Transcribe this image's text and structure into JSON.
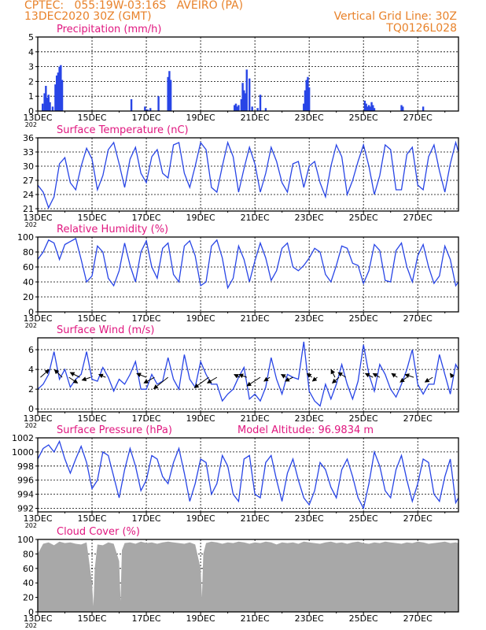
{
  "header": {
    "line1_left": "CPTEC:   055:19W-03:16S   AVEIRO (PA)",
    "line2_left": "13DEC2020 30Z (GMT)",
    "line1_right": "Vertical Grid Line: 30Z",
    "line2_right": "TQ0126L028",
    "color": "#e8822a"
  },
  "x_axis": {
    "tick_labels": [
      "13DEC",
      "15DEC",
      "17DEC",
      "19DEC",
      "21DEC",
      "23DEC",
      "25DEC",
      "27DEC"
    ],
    "tick_days": [
      0,
      2,
      4,
      6,
      8,
      10,
      12,
      14
    ],
    "sub_label": "202",
    "day_range": [
      0,
      15.5
    ]
  },
  "colors": {
    "title": "#e0177f",
    "line": "#2845e6",
    "bar": "#2845e6",
    "cloud": "#a8a8a8",
    "wind_arrow": "#000000"
  },
  "chart_data": [
    {
      "id": "precip",
      "type": "bar",
      "title": "Precipitation  (mm/h)",
      "ylim": [
        0,
        5
      ],
      "yticks": [
        0,
        1,
        2,
        3,
        4,
        5
      ],
      "x_unit": "days since 13DEC",
      "x": [
        0.18,
        0.25,
        0.3,
        0.35,
        0.4,
        0.45,
        0.55,
        0.65,
        0.7,
        0.75,
        0.8,
        0.85,
        0.9,
        3.45,
        3.95,
        4.05,
        4.15,
        4.45,
        4.8,
        4.85,
        4.9,
        7.25,
        7.3,
        7.35,
        7.4,
        7.5,
        7.55,
        7.6,
        7.65,
        7.7,
        7.8,
        7.9,
        8.1,
        8.2,
        8.4,
        9.8,
        9.85,
        9.9,
        9.95,
        10.0,
        12.05,
        12.1,
        12.15,
        12.2,
        12.25,
        12.3,
        12.35,
        12.4,
        13.4,
        13.45,
        14.2
      ],
      "values": [
        0.5,
        1.2,
        1.7,
        0.9,
        1.1,
        0.6,
        0.3,
        1.8,
        2.4,
        2.6,
        3.0,
        3.1,
        2.1,
        0.8,
        0.3,
        0.1,
        0.2,
        1.0,
        2.3,
        2.7,
        2.1,
        0.4,
        0.5,
        0.3,
        0.4,
        0.8,
        1.9,
        1.4,
        1.2,
        2.8,
        2.2,
        0.3,
        0.2,
        1.1,
        0.2,
        0.5,
        1.4,
        2.1,
        2.3,
        1.6,
        0.7,
        0.5,
        0.3,
        0.4,
        0.3,
        0.6,
        0.4,
        0.2,
        0.4,
        0.3,
        0.3
      ]
    },
    {
      "id": "temp",
      "type": "line",
      "title": "Surface Temperature (nC)",
      "ylim": [
        20.5,
        36
      ],
      "yticks": [
        21,
        24,
        27,
        30,
        33,
        36
      ],
      "x_unit": "days since 13DEC",
      "x": [
        0,
        0.2,
        0.4,
        0.6,
        0.8,
        1.0,
        1.2,
        1.4,
        1.6,
        1.8,
        2.0,
        2.2,
        2.4,
        2.6,
        2.8,
        3.0,
        3.2,
        3.4,
        3.6,
        3.8,
        4.0,
        4.2,
        4.4,
        4.6,
        4.8,
        5.0,
        5.2,
        5.4,
        5.6,
        5.8,
        6.0,
        6.2,
        6.4,
        6.6,
        6.8,
        7.0,
        7.2,
        7.4,
        7.6,
        7.8,
        8.0,
        8.2,
        8.4,
        8.6,
        8.8,
        9.0,
        9.2,
        9.4,
        9.6,
        9.8,
        10.0,
        10.2,
        10.4,
        10.6,
        10.8,
        11.0,
        11.2,
        11.4,
        11.6,
        11.8,
        12.0,
        12.2,
        12.4,
        12.6,
        12.8,
        13.0,
        13.2,
        13.4,
        13.6,
        13.8,
        14.0,
        14.2,
        14.4,
        14.6,
        14.8,
        15.0,
        15.2,
        15.4,
        15.5
      ],
      "values": [
        26.0,
        24.5,
        21.2,
        23.5,
        30.5,
        31.8,
        26.5,
        25.0,
        30.0,
        33.8,
        31.5,
        25.0,
        28.0,
        33.5,
        35.0,
        30.5,
        25.5,
        31.5,
        34.0,
        28.5,
        26.5,
        32.0,
        33.5,
        28.5,
        27.5,
        34.5,
        35.0,
        28.5,
        25.5,
        30.0,
        35.0,
        33.5,
        25.5,
        24.5,
        30.0,
        35.0,
        32.0,
        24.5,
        29.5,
        34.0,
        30.5,
        24.5,
        28.5,
        34.0,
        31.0,
        26.5,
        24.5,
        30.5,
        31.0,
        25.5,
        30.0,
        31.0,
        26.5,
        23.5,
        30.0,
        34.5,
        32.0,
        24.0,
        27.0,
        31.0,
        34.5,
        30.0,
        24.0,
        28.0,
        34.5,
        33.5,
        25.0,
        25.0,
        32.5,
        34.0,
        26.0,
        25.0,
        32.0,
        34.5,
        29.0,
        24.5,
        30.5,
        35.0,
        33.0
      ]
    },
    {
      "id": "rh",
      "type": "line",
      "title": "Relative Humidity (%)",
      "ylim": [
        0,
        100
      ],
      "yticks": [
        0,
        20,
        40,
        60,
        80,
        100
      ],
      "x_unit": "days since 13DEC",
      "x": [
        0,
        0.2,
        0.4,
        0.6,
        0.8,
        1.0,
        1.2,
        1.4,
        1.6,
        1.8,
        2.0,
        2.2,
        2.4,
        2.6,
        2.8,
        3.0,
        3.2,
        3.4,
        3.6,
        3.8,
        4.0,
        4.2,
        4.4,
        4.6,
        4.8,
        5.0,
        5.2,
        5.4,
        5.6,
        5.8,
        6.0,
        6.2,
        6.4,
        6.6,
        6.8,
        7.0,
        7.2,
        7.4,
        7.6,
        7.8,
        8.0,
        8.2,
        8.4,
        8.6,
        8.8,
        9.0,
        9.2,
        9.4,
        9.6,
        9.8,
        10.0,
        10.2,
        10.4,
        10.6,
        10.8,
        11.0,
        11.2,
        11.4,
        11.6,
        11.8,
        12.0,
        12.2,
        12.4,
        12.6,
        12.8,
        13.0,
        13.2,
        13.4,
        13.6,
        13.8,
        14.0,
        14.2,
        14.4,
        14.6,
        14.8,
        15.0,
        15.2,
        15.4,
        15.5
      ],
      "values": [
        70.0,
        80.0,
        96.0,
        92.0,
        70.0,
        90.0,
        94.0,
        98.0,
        70.0,
        40.0,
        48.0,
        88.0,
        80.0,
        45.0,
        35.0,
        55.0,
        92.0,
        62.0,
        40.0,
        80.0,
        95.0,
        60.0,
        45.0,
        85.0,
        92.0,
        50.0,
        40.0,
        88.0,
        95.0,
        75.0,
        35.0,
        40.0,
        88.0,
        96.0,
        72.0,
        32.0,
        45.0,
        88.0,
        70.0,
        40.0,
        68.0,
        92.0,
        72.0,
        42.0,
        55.0,
        85.0,
        92.0,
        60.0,
        55.0,
        62.0,
        72.0,
        85.0,
        80.0,
        50.0,
        40.0,
        62.0,
        88.0,
        85.0,
        65.0,
        62.0,
        38.0,
        55.0,
        90.0,
        82.0,
        42.0,
        40.0,
        82.0,
        92.0,
        60.0,
        40.0,
        75.0,
        90.0,
        60.0,
        38.0,
        48.0,
        88.0,
        70.0,
        35.0,
        40.0
      ]
    },
    {
      "id": "wind",
      "type": "line",
      "title": "Surface Wind (m/s)",
      "ylim": [
        -0.3,
        7.2
      ],
      "yticks": [
        0,
        2,
        4,
        6
      ],
      "x_unit": "days since 13DEC",
      "x": [
        0,
        0.2,
        0.4,
        0.6,
        0.8,
        1.0,
        1.2,
        1.4,
        1.6,
        1.8,
        2.0,
        2.2,
        2.4,
        2.6,
        2.8,
        3.0,
        3.2,
        3.4,
        3.6,
        3.8,
        4.0,
        4.2,
        4.4,
        4.6,
        4.8,
        5.0,
        5.2,
        5.4,
        5.6,
        5.8,
        6.0,
        6.2,
        6.4,
        6.6,
        6.8,
        7.0,
        7.2,
        7.4,
        7.6,
        7.8,
        8.0,
        8.2,
        8.4,
        8.6,
        8.8,
        9.0,
        9.2,
        9.4,
        9.6,
        9.8,
        10.0,
        10.2,
        10.4,
        10.6,
        10.8,
        11.0,
        11.2,
        11.4,
        11.6,
        11.8,
        12.0,
        12.2,
        12.4,
        12.6,
        12.8,
        13.0,
        13.2,
        13.4,
        13.6,
        13.8,
        14.0,
        14.2,
        14.4,
        14.6,
        14.8,
        15.0,
        15.2,
        15.4,
        15.5
      ],
      "values": [
        2.0,
        2.5,
        3.5,
        5.8,
        3.0,
        4.0,
        2.2,
        3.0,
        3.5,
        5.8,
        3.0,
        2.8,
        4.2,
        3.2,
        1.8,
        3.0,
        2.5,
        3.5,
        4.8,
        2.0,
        2.0,
        3.5,
        2.5,
        2.8,
        5.2,
        3.0,
        2.0,
        5.5,
        3.0,
        2.2,
        4.8,
        3.5,
        2.5,
        2.5,
        0.8,
        1.5,
        2.0,
        3.2,
        4.2,
        1.0,
        1.5,
        0.8,
        2.2,
        5.2,
        3.0,
        1.5,
        3.5,
        3.2,
        3.0,
        6.8,
        1.8,
        0.8,
        0.3,
        2.5,
        1.0,
        2.5,
        4.5,
        2.5,
        1.0,
        2.8,
        6.5,
        3.5,
        1.8,
        4.5,
        3.5,
        2.0,
        1.2,
        2.5,
        4.0,
        6.0,
        2.5,
        1.5,
        2.5,
        2.5,
        5.5,
        3.5,
        1.5,
        4.5,
        4.0
      ],
      "arrows": [
        {
          "x": 0.1,
          "u": 0.9,
          "v": 0.8
        },
        {
          "x": 0.9,
          "u": -0.8,
          "v": 0.8
        },
        {
          "x": 1.15,
          "u": 0.9,
          "v": -0.6
        },
        {
          "x": 1.55,
          "u": -1.0,
          "v": 0.5
        },
        {
          "x": 1.95,
          "u": -0.9,
          "v": -0.3
        },
        {
          "x": 2.5,
          "u": -0.7,
          "v": 0.3
        },
        {
          "x": 4.0,
          "u": -1.0,
          "v": 0.4
        },
        {
          "x": 4.3,
          "u": -1.1,
          "v": -0.6
        },
        {
          "x": 4.8,
          "u": -1.5,
          "v": -1.2
        },
        {
          "x": 6.3,
          "u": -1.5,
          "v": -1.1
        },
        {
          "x": 6.6,
          "u": -1.0,
          "v": -0.6
        },
        {
          "x": 7.45,
          "u": -0.6,
          "v": 0.3
        },
        {
          "x": 7.7,
          "u": -0.8,
          "v": 0.3
        },
        {
          "x": 8.2,
          "u": -1.4,
          "v": -0.9
        },
        {
          "x": 8.55,
          "u": -0.6,
          "v": -0.4
        },
        {
          "x": 9.15,
          "u": -0.5,
          "v": 0.3
        },
        {
          "x": 9.4,
          "u": -0.8,
          "v": -0.4
        },
        {
          "x": 10.1,
          "u": -0.5,
          "v": 0.4
        },
        {
          "x": 10.3,
          "u": -0.5,
          "v": -0.4
        },
        {
          "x": 10.95,
          "u": -0.4,
          "v": 0.8
        },
        {
          "x": 11.1,
          "u": -0.7,
          "v": -0.6
        },
        {
          "x": 11.35,
          "u": -0.8,
          "v": 0.5
        },
        {
          "x": 12.35,
          "u": -0.8,
          "v": 0.4
        },
        {
          "x": 12.6,
          "u": -0.7,
          "v": 0.4
        },
        {
          "x": 13.25,
          "u": -0.6,
          "v": 0.4
        },
        {
          "x": 13.6,
          "u": -0.7,
          "v": -0.5
        },
        {
          "x": 13.85,
          "u": -0.9,
          "v": 0.3
        },
        {
          "x": 14.55,
          "u": -0.8,
          "v": -0.5
        },
        {
          "x": 15.3,
          "u": -0.3,
          "v": 0.4
        }
      ]
    },
    {
      "id": "pres",
      "type": "line",
      "title": "Surface Pressure (hPa)",
      "subtitle": "Model Altitude: 96.9834  m",
      "ylim": [
        991.5,
        1002
      ],
      "yticks": [
        992,
        994,
        996,
        998,
        1000,
        1002
      ],
      "x_unit": "days since 13DEC",
      "x": [
        0,
        0.2,
        0.4,
        0.6,
        0.8,
        1.0,
        1.2,
        1.4,
        1.6,
        1.8,
        2.0,
        2.2,
        2.4,
        2.6,
        2.8,
        3.0,
        3.2,
        3.4,
        3.6,
        3.8,
        4.0,
        4.2,
        4.4,
        4.6,
        4.8,
        5.0,
        5.2,
        5.4,
        5.6,
        5.8,
        6.0,
        6.2,
        6.4,
        6.6,
        6.8,
        7.0,
        7.2,
        7.4,
        7.6,
        7.8,
        8.0,
        8.2,
        8.4,
        8.6,
        8.8,
        9.0,
        9.2,
        9.4,
        9.6,
        9.8,
        10.0,
        10.2,
        10.4,
        10.6,
        10.8,
        11.0,
        11.2,
        11.4,
        11.6,
        11.8,
        12.0,
        12.2,
        12.4,
        12.6,
        12.8,
        13.0,
        13.2,
        13.4,
        13.6,
        13.8,
        14.0,
        14.2,
        14.4,
        14.6,
        14.8,
        15.0,
        15.2,
        15.4,
        15.5
      ],
      "values": [
        999.0,
        1000.5,
        1001.0,
        1000.0,
        1001.5,
        999.0,
        997.0,
        999.0,
        1000.8,
        998.5,
        994.8,
        996.0,
        1000.0,
        999.5,
        996.5,
        993.5,
        997.5,
        1000.5,
        998.0,
        994.5,
        996.0,
        999.5,
        999.0,
        996.5,
        995.5,
        998.5,
        1000.5,
        997.0,
        993.0,
        995.5,
        999.0,
        998.5,
        994.0,
        995.5,
        999.5,
        998.0,
        994.0,
        993.0,
        999.0,
        999.5,
        994.0,
        993.5,
        998.5,
        999.5,
        996.0,
        993.0,
        997.0,
        999.0,
        996.0,
        993.5,
        992.5,
        994.5,
        998.5,
        997.5,
        995.0,
        993.5,
        997.5,
        999.0,
        996.5,
        993.5,
        992.0,
        995.5,
        1000.0,
        998.0,
        994.5,
        993.5,
        997.5,
        999.5,
        996.0,
        993.0,
        995.5,
        999.0,
        998.5,
        994.0,
        993.0,
        996.5,
        999.0,
        992.8,
        993.5
      ]
    },
    {
      "id": "cloud",
      "type": "area",
      "title": "Cloud Cover (%)",
      "ylim": [
        0,
        100
      ],
      "yticks": [
        0,
        20,
        40,
        60,
        80,
        100
      ],
      "x_unit": "days since 13DEC",
      "x": [
        0,
        0.2,
        0.4,
        0.6,
        0.8,
        1.0,
        1.2,
        1.4,
        1.6,
        1.8,
        2.0,
        2.05,
        2.1,
        2.2,
        2.4,
        2.6,
        2.8,
        3.0,
        3.05,
        3.1,
        3.2,
        3.4,
        3.6,
        3.8,
        4.0,
        4.2,
        4.4,
        4.6,
        4.8,
        5.0,
        5.2,
        5.4,
        5.6,
        5.8,
        6.0,
        6.05,
        6.1,
        6.2,
        6.4,
        6.6,
        6.8,
        7.0,
        7.2,
        7.4,
        7.6,
        7.8,
        8.0,
        8.2,
        8.4,
        8.6,
        8.8,
        9.0,
        9.2,
        9.4,
        9.6,
        9.8,
        10.0,
        10.2,
        10.4,
        10.6,
        10.8,
        11.0,
        11.2,
        11.4,
        11.6,
        11.8,
        12.0,
        12.2,
        12.4,
        12.6,
        12.8,
        13.0,
        13.2,
        13.4,
        13.6,
        13.8,
        14.0,
        14.2,
        14.4,
        14.6,
        14.8,
        15.0,
        15.2,
        15.4,
        15.5
      ],
      "values": [
        80,
        94,
        96,
        92,
        97,
        95,
        96,
        94,
        93,
        96,
        40,
        8,
        60,
        93,
        92,
        96,
        94,
        70,
        15,
        85,
        95,
        96,
        94,
        97,
        95,
        96,
        94,
        96,
        97,
        96,
        95,
        94,
        96,
        93,
        60,
        20,
        80,
        95,
        97,
        96,
        94,
        96,
        95,
        97,
        96,
        94,
        96,
        95,
        97,
        96,
        93,
        96,
        95,
        96,
        94,
        97,
        96,
        95,
        94,
        96,
        97,
        95,
        96,
        94,
        96,
        97,
        95,
        94,
        96,
        95,
        97,
        96,
        95,
        94,
        96,
        95,
        97,
        96,
        94,
        95,
        96,
        97,
        95,
        96,
        95
      ]
    }
  ]
}
